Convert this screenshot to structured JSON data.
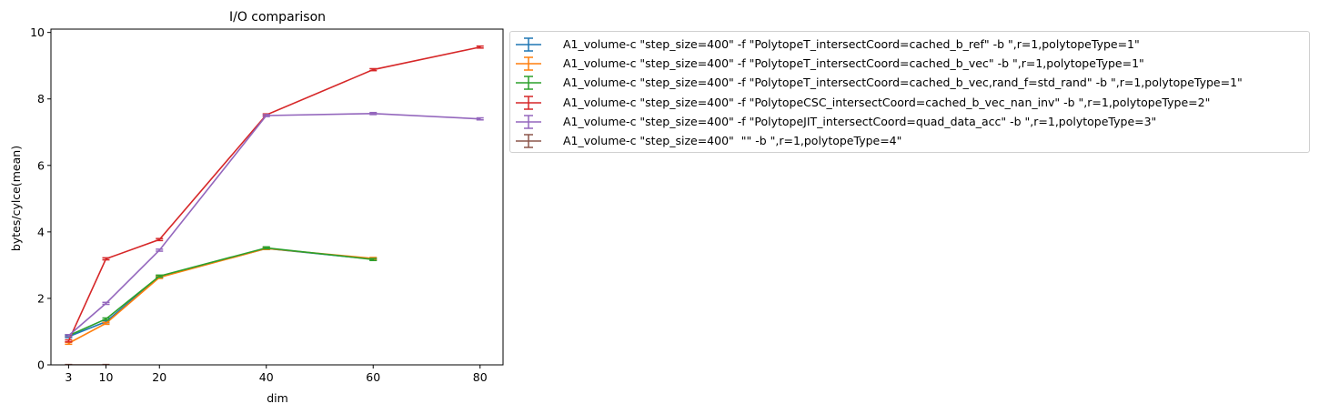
{
  "chart_data": {
    "type": "line",
    "title": "I/O comparison",
    "xlabel": "dim",
    "ylabel": "bytes/cylce(mean)",
    "xlim": [
      -0.3,
      84.3
    ],
    "ylim": [
      0,
      10.1
    ],
    "xticks": [
      3,
      10,
      20,
      40,
      60,
      80
    ],
    "yticks": [
      0,
      2,
      4,
      6,
      8,
      10
    ],
    "legend_position": "outside-right-top",
    "series": [
      {
        "name": "A1_volume-c \"step_size=400\" -f \"PolytopeT_intersectCoord=cached_b_ref\" -b \",r=1,polytopeType=1\"",
        "color": "#1f77b4",
        "x": [
          3,
          10,
          20,
          40,
          60
        ],
        "y": [
          0.85,
          1.3,
          2.65,
          3.5,
          3.18
        ],
        "err": [
          0.03,
          0.03,
          0.03,
          0.03,
          0.03
        ]
      },
      {
        "name": "A1_volume-c \"step_size=400\" -f \"PolytopeT_intersectCoord=cached_b_vec\" -b \",r=1,polytopeType=1\"",
        "color": "#ff7f0e",
        "x": [
          3,
          10,
          20,
          40,
          60
        ],
        "y": [
          0.65,
          1.25,
          2.63,
          3.5,
          3.2
        ],
        "err": [
          0.03,
          0.03,
          0.03,
          0.03,
          0.03
        ]
      },
      {
        "name": "A1_volume-c \"step_size=400\" -f \"PolytopeT_intersectCoord=cached_b_vec,rand_f=std_rand\" -b \",r=1,polytopeType=1\"",
        "color": "#2ca02c",
        "x": [
          3,
          10,
          20,
          40,
          60
        ],
        "y": [
          0.88,
          1.38,
          2.67,
          3.52,
          3.17
        ],
        "err": [
          0.03,
          0.03,
          0.03,
          0.03,
          0.03
        ]
      },
      {
        "name": "A1_volume-c \"step_size=400\" -f \"PolytopeCSC_intersectCoord=cached_b_vec_nan_inv\" -b \",r=1,polytopeType=2\"",
        "color": "#d62728",
        "x": [
          3,
          10,
          20,
          40,
          60,
          80
        ],
        "y": [
          0.72,
          3.19,
          3.77,
          7.52,
          8.88,
          9.56
        ],
        "err": [
          0.03,
          0.03,
          0.03,
          0.03,
          0.03,
          0.03
        ]
      },
      {
        "name": "A1_volume-c \"step_size=400\" -f \"PolytopeJIT_intersectCoord=quad_data_acc\" -b \",r=1,polytopeType=3\"",
        "color": "#9467bd",
        "x": [
          3,
          10,
          20,
          40,
          60,
          80
        ],
        "y": [
          0.88,
          1.85,
          3.45,
          7.5,
          7.56,
          7.4
        ],
        "err": [
          0.03,
          0.03,
          0.03,
          0.03,
          0.03,
          0.03
        ]
      },
      {
        "name": "A1_volume-c \"step_size=400\"  \"\" -b \",r=1,polytopeType=4\"",
        "color": "#8c564b",
        "x": [
          3,
          10
        ],
        "y": [
          0.0,
          0.0
        ],
        "err": [
          0.01,
          0.01
        ]
      }
    ]
  }
}
